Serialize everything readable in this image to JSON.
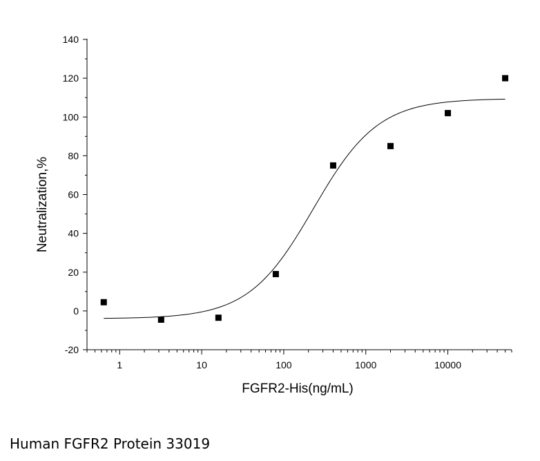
{
  "chart_data": {
    "type": "scatter",
    "xlabel": "FGFR2-His(ng/mL)",
    "ylabel": "Neutralization,%",
    "x_scale": "log",
    "xlim": [
      0.4,
      60000
    ],
    "ylim": [
      -20,
      140
    ],
    "x_ticks": [
      1,
      10,
      100,
      1000,
      10000
    ],
    "x_tick_labels": [
      "1",
      "10",
      "100",
      "1000",
      "10000"
    ],
    "y_ticks": [
      -20,
      0,
      20,
      40,
      60,
      80,
      100,
      120,
      140
    ],
    "y_tick_labels": [
      "-20",
      "0",
      "20",
      "40",
      "60",
      "80",
      "100",
      "120",
      "140"
    ],
    "points": [
      {
        "x": 0.64,
        "y": 4.5
      },
      {
        "x": 3.2,
        "y": -4.5
      },
      {
        "x": 16,
        "y": -3.5
      },
      {
        "x": 80,
        "y": 19
      },
      {
        "x": 400,
        "y": 75
      },
      {
        "x": 2000,
        "y": 85
      },
      {
        "x": 10000,
        "y": 102
      },
      {
        "x": 50000,
        "y": 120
      }
    ],
    "fit": {
      "model": "4PL",
      "bottom": -4,
      "top": 109.5,
      "ec50": 230,
      "hill": 1.1,
      "x_range": [
        0.64,
        50000
      ]
    },
    "grid": false,
    "legend": "none"
  },
  "caption": "Human FGFR2 Protein 33019"
}
